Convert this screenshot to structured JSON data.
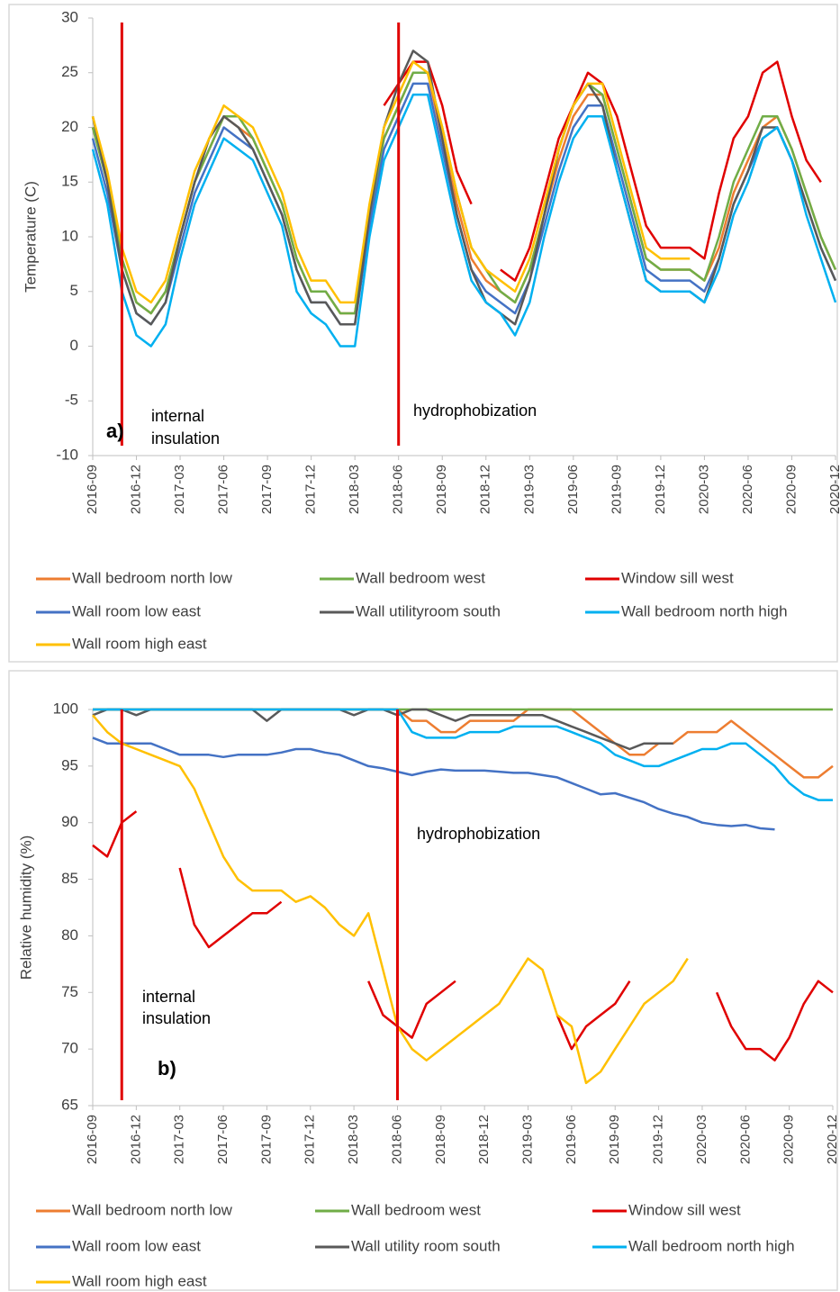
{
  "chart_data": [
    {
      "type": "line",
      "panel_label": "a)",
      "y_label": "Temperature (C)",
      "xlim": [
        "2016-09",
        "2020-12"
      ],
      "xticks": [
        "2016-09",
        "2016-12",
        "2017-03",
        "2017-06",
        "2017-09",
        "2017-12",
        "2018-03",
        "2018-06",
        "2018-09",
        "2018-12",
        "2019-03",
        "2019-06",
        "2019-09",
        "2019-12",
        "2020-03",
        "2020-06",
        "2020-09",
        "2020-12"
      ],
      "ylim": [
        -10,
        30
      ],
      "yticks": [
        -10,
        -5,
        0,
        5,
        10,
        15,
        20,
        25,
        30
      ],
      "x": [
        "2016-09",
        "2016-10",
        "2016-11",
        "2016-12",
        "2017-01",
        "2017-02",
        "2017-03",
        "2017-04",
        "2017-05",
        "2017-06",
        "2017-07",
        "2017-08",
        "2017-09",
        "2017-10",
        "2017-11",
        "2017-12",
        "2018-01",
        "2018-02",
        "2018-03",
        "2018-04",
        "2018-05",
        "2018-06",
        "2018-07",
        "2018-08",
        "2018-09",
        "2018-10",
        "2018-11",
        "2018-12",
        "2019-01",
        "2019-02",
        "2019-03",
        "2019-04",
        "2019-05",
        "2019-06",
        "2019-07",
        "2019-08",
        "2019-09",
        "2019-10",
        "2019-11",
        "2019-12",
        "2020-01",
        "2020-02",
        "2020-03",
        "2020-04",
        "2020-05",
        "2020-06",
        "2020-07",
        "2020-08",
        "2020-09",
        "2020-10",
        "2020-11",
        "2020-12"
      ],
      "events": [
        {
          "x": "2016-11",
          "label": [
            "internal",
            "insulation"
          ]
        },
        {
          "x": "2018-06",
          "label": [
            "hydrophobization"
          ]
        }
      ],
      "series": [
        {
          "name": "Wall bedroom north low",
          "color": "#ed7d31",
          "values": [
            20,
            15,
            8,
            4,
            3,
            5,
            10,
            15,
            18,
            21,
            20,
            19,
            16,
            13,
            8,
            5,
            5,
            3,
            3,
            12,
            19,
            22,
            25,
            25,
            19,
            13,
            8,
            6,
            5,
            4,
            7,
            12,
            17,
            21,
            23,
            23,
            18,
            13,
            8,
            7,
            7,
            7,
            6,
            9,
            14,
            17,
            20,
            21,
            18,
            14,
            10,
            7
          ]
        },
        {
          "name": "Wall bedroom west",
          "color": "#70ad47",
          "values": [
            20,
            15,
            8,
            4,
            3,
            5,
            10,
            15,
            18,
            21,
            21,
            19,
            16,
            13,
            8,
            5,
            5,
            3,
            3,
            12,
            19,
            22,
            25,
            25,
            20,
            14,
            9,
            7,
            5,
            4,
            7,
            12,
            18,
            22,
            24,
            23,
            18,
            13,
            8,
            7,
            7,
            7,
            6,
            10,
            15,
            18,
            21,
            21,
            18,
            14,
            10,
            7
          ]
        },
        {
          "name": "Window sill west",
          "color": "#e00000",
          "values": [
            null,
            null,
            9,
            null,
            9,
            null,
            null,
            null,
            null,
            null,
            null,
            null,
            null,
            null,
            null,
            13,
            null,
            null,
            null,
            null,
            22,
            24,
            26,
            26,
            22,
            16,
            13,
            null,
            7,
            6,
            9,
            14,
            19,
            22,
            25,
            24,
            21,
            16,
            11,
            9,
            9,
            9,
            8,
            14,
            19,
            21,
            25,
            26,
            21,
            17,
            15,
            null
          ]
        },
        {
          "name": "Wall room low east",
          "color": "#4472c4",
          "values": [
            19,
            14,
            7,
            3,
            2,
            4,
            9,
            14,
            17,
            20,
            19,
            18,
            15,
            12,
            7,
            4,
            4,
            2,
            2,
            11,
            18,
            21,
            24,
            24,
            18,
            12,
            7,
            5,
            4,
            3,
            6,
            11,
            16,
            20,
            22,
            22,
            17,
            12,
            7,
            6,
            6,
            6,
            5,
            8,
            13,
            16,
            19,
            20,
            17,
            13,
            9,
            6
          ]
        },
        {
          "name": "Wall utilityroom south",
          "color": "#595959",
          "values": [
            21,
            15,
            7,
            3,
            2,
            4,
            10,
            15,
            19,
            21,
            20,
            18,
            15,
            12,
            7,
            4,
            4,
            2,
            2,
            12,
            20,
            24,
            27,
            26,
            19,
            12,
            7,
            4,
            3,
            2,
            6,
            12,
            18,
            22,
            24,
            22,
            16,
            11,
            6,
            5,
            5,
            5,
            4,
            8,
            13,
            16,
            20,
            20,
            17,
            13,
            9,
            6
          ]
        },
        {
          "name": "Wall bedroom north high",
          "color": "#00b0f0",
          "values": [
            18,
            13,
            5,
            1,
            0,
            2,
            8,
            13,
            16,
            19,
            18,
            17,
            14,
            11,
            5,
            3,
            2,
            0,
            0,
            10,
            17,
            20,
            23,
            23,
            17,
            11,
            6,
            4,
            3,
            1,
            4,
            10,
            15,
            19,
            21,
            21,
            16,
            11,
            6,
            5,
            5,
            5,
            4,
            7,
            12,
            15,
            19,
            20,
            17,
            12,
            8,
            4
          ]
        },
        {
          "name": "Wall room high east",
          "color": "#ffc000",
          "values": [
            21,
            16,
            9,
            5,
            4,
            6,
            11,
            16,
            19,
            22,
            21,
            20,
            17,
            14,
            9,
            6,
            6,
            4,
            4,
            13,
            20,
            23,
            26,
            25,
            20,
            14,
            9,
            7,
            6,
            5,
            8,
            13,
            18,
            22,
            24,
            24,
            19,
            14,
            9,
            8,
            8,
            8,
            null,
            null,
            null,
            null,
            null,
            null,
            null,
            null,
            null,
            null
          ]
        }
      ]
    },
    {
      "type": "line",
      "panel_label": "b)",
      "y_label": "Relative humidity (%)",
      "xlim": [
        "2016-09",
        "2020-12"
      ],
      "xticks": [
        "2016-09",
        "2016-12",
        "2017-03",
        "2017-06",
        "2017-09",
        "2017-12",
        "2018-03",
        "2018-06",
        "2018-09",
        "2018-12",
        "2019-03",
        "2019-06",
        "2019-09",
        "2019-12",
        "2020-03",
        "2020-06",
        "2020-09",
        "2020-12"
      ],
      "ylim": [
        65,
        100
      ],
      "yticks": [
        65,
        70,
        75,
        80,
        85,
        90,
        95,
        100
      ],
      "x": [
        "2016-09",
        "2016-10",
        "2016-11",
        "2016-12",
        "2017-01",
        "2017-02",
        "2017-03",
        "2017-04",
        "2017-05",
        "2017-06",
        "2017-07",
        "2017-08",
        "2017-09",
        "2017-10",
        "2017-11",
        "2017-12",
        "2018-01",
        "2018-02",
        "2018-03",
        "2018-04",
        "2018-05",
        "2018-06",
        "2018-07",
        "2018-08",
        "2018-09",
        "2018-10",
        "2018-11",
        "2018-12",
        "2019-01",
        "2019-02",
        "2019-03",
        "2019-04",
        "2019-05",
        "2019-06",
        "2019-07",
        "2019-08",
        "2019-09",
        "2019-10",
        "2019-11",
        "2019-12",
        "2020-01",
        "2020-02",
        "2020-03",
        "2020-04",
        "2020-05",
        "2020-06",
        "2020-07",
        "2020-08",
        "2020-09",
        "2020-10",
        "2020-11",
        "2020-12"
      ],
      "events": [
        {
          "x": "2016-11",
          "label": [
            "internal",
            "insulation"
          ]
        },
        {
          "x": "2018-06",
          "label": [
            "hydrophobization"
          ]
        }
      ],
      "series": [
        {
          "name": "Wall bedroom north low",
          "color": "#ed7d31",
          "values": [
            100,
            100,
            100,
            100,
            100,
            100,
            100,
            100,
            100,
            100,
            100,
            100,
            100,
            100,
            100,
            100,
            100,
            100,
            100,
            100,
            100,
            100,
            99,
            99,
            98,
            98,
            99,
            99,
            99,
            99,
            100,
            100,
            100,
            100,
            99,
            98,
            97,
            96,
            96,
            97,
            97,
            98,
            98,
            98,
            99,
            98,
            97,
            96,
            95,
            94,
            94,
            95
          ]
        },
        {
          "name": "Wall bedroom west",
          "color": "#70ad47",
          "values": [
            100,
            100,
            100,
            100,
            100,
            100,
            100,
            100,
            100,
            100,
            100,
            100,
            100,
            100,
            100,
            100,
            100,
            100,
            100,
            100,
            100,
            100,
            100,
            100,
            100,
            100,
            100,
            100,
            100,
            100,
            100,
            100,
            100,
            100,
            100,
            100,
            100,
            100,
            100,
            100,
            100,
            100,
            100,
            100,
            100,
            100,
            100,
            100,
            100,
            100,
            100,
            100
          ]
        },
        {
          "name": "Window sill west",
          "color": "#e00000",
          "values": [
            88,
            87,
            90,
            91,
            null,
            null,
            86,
            81,
            79,
            80,
            81,
            82,
            82,
            83,
            null,
            null,
            null,
            null,
            null,
            76,
            73,
            72,
            71,
            74,
            75,
            76,
            null,
            79,
            null,
            null,
            79,
            null,
            73,
            70,
            72,
            73,
            74,
            76,
            null,
            null,
            null,
            null,
            null,
            75,
            72,
            70,
            70,
            69,
            71,
            74,
            76,
            75
          ]
        },
        {
          "name": "Wall room low east",
          "color": "#4472c4",
          "values": [
            97.5,
            97,
            97,
            97,
            97,
            96.5,
            96,
            96,
            96,
            95.8,
            96,
            96,
            96,
            96.2,
            96.5,
            96.5,
            96.2,
            96,
            95.5,
            95,
            94.8,
            94.5,
            94.2,
            94.5,
            94.7,
            94.6,
            94.6,
            94.6,
            94.5,
            94.4,
            94.4,
            94.2,
            94,
            93.5,
            93,
            92.5,
            92.6,
            92.2,
            91.8,
            91.2,
            90.8,
            90.5,
            90,
            89.8,
            89.7,
            89.8,
            89.5,
            89.4,
            null,
            null,
            null,
            null
          ]
        },
        {
          "name": "Wall utility room south",
          "color": "#595959",
          "values": [
            99.5,
            100,
            100,
            99.5,
            100,
            100,
            100,
            100,
            100,
            100,
            100,
            100,
            99,
            100,
            100,
            100,
            100,
            100,
            99.5,
            100,
            100,
            99.5,
            100,
            100,
            99.5,
            99,
            99.5,
            99.5,
            99.5,
            99.5,
            99.5,
            99.5,
            99,
            98.5,
            98,
            97.5,
            97,
            96.5,
            97,
            97,
            97,
            null,
            null,
            null,
            null,
            null,
            null,
            null,
            null,
            null,
            null,
            null
          ]
        },
        {
          "name": "Wall bedroom north high",
          "color": "#00b0f0",
          "values": [
            100,
            100,
            100,
            100,
            100,
            100,
            100,
            100,
            100,
            100,
            100,
            100,
            100,
            100,
            100,
            100,
            100,
            100,
            100,
            100,
            100,
            100,
            98,
            97.5,
            97.5,
            97.5,
            98,
            98,
            98,
            98.5,
            98.5,
            98.5,
            98.5,
            98,
            97.5,
            97,
            96,
            95.5,
            95,
            95,
            95.5,
            96,
            96.5,
            96.5,
            97,
            97,
            96,
            95,
            93.5,
            92.5,
            92,
            92
          ]
        },
        {
          "name": "Wall room high east",
          "color": "#ffc000",
          "values": [
            99.5,
            98,
            97,
            96.5,
            96,
            95.5,
            95,
            93,
            90,
            87,
            85,
            84,
            84,
            84,
            83,
            83.5,
            82.5,
            81,
            80,
            82,
            77,
            72,
            70,
            69,
            70,
            71,
            72,
            73,
            74,
            76,
            78,
            77,
            73,
            72,
            67,
            68,
            70,
            72,
            74,
            75,
            76,
            78,
            null,
            null,
            null,
            null,
            null,
            null,
            null,
            null,
            null,
            null
          ]
        }
      ]
    }
  ]
}
